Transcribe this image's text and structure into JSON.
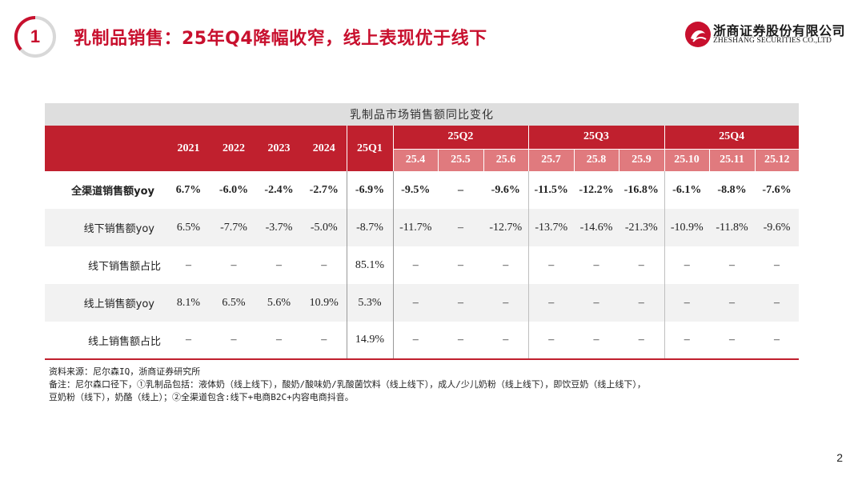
{
  "header": {
    "section_number": "1",
    "title": "乳制品销售：25年Q4降幅收窄，线上表现优于线下",
    "logo_cn": "浙商证券股份有限公司",
    "logo_en": "ZHESHANG SECURITIES CO.,LTD",
    "brand_color": "#c8102e"
  },
  "table": {
    "caption": "乳制品市场销售额同比变化",
    "years": [
      "2021",
      "2022",
      "2023",
      "2024"
    ],
    "q1_label": "25Q1",
    "quarters": [
      {
        "label": "25Q2",
        "months": [
          "25.4",
          "25.5",
          "25.6"
        ]
      },
      {
        "label": "25Q3",
        "months": [
          "25.7",
          "25.8",
          "25.9"
        ]
      },
      {
        "label": "25Q4",
        "months": [
          "25.10",
          "25.11",
          "25.12"
        ]
      }
    ],
    "rows": [
      {
        "label": "全渠道销售额yoy",
        "values": [
          "6.7%",
          "-6.0%",
          "-2.4%",
          "-2.7%",
          "-6.9%",
          "-9.5%",
          "–",
          "-9.6%",
          "-11.5%",
          "-12.2%",
          "-16.8%",
          "-6.1%",
          "-8.8%",
          "-7.6%"
        ]
      },
      {
        "label": "线下销售额yoy",
        "values": [
          "6.5%",
          "-7.7%",
          "-3.7%",
          "-5.0%",
          "-8.7%",
          "-11.7%",
          "–",
          "-12.7%",
          "-13.7%",
          "-14.6%",
          "-21.3%",
          "-10.9%",
          "-11.8%",
          "-9.6%"
        ]
      },
      {
        "label": "线下销售额占比",
        "values": [
          "–",
          "–",
          "–",
          "–",
          "85.1%",
          "–",
          "–",
          "–",
          "–",
          "–",
          "–",
          "–",
          "–",
          "–"
        ]
      },
      {
        "label": "线上销售额yoy",
        "values": [
          "8.1%",
          "6.5%",
          "5.6%",
          "10.9%",
          "5.3%",
          "–",
          "–",
          "–",
          "–",
          "–",
          "–",
          "–",
          "–",
          "–"
        ]
      },
      {
        "label": "线上销售额占比",
        "values": [
          "–",
          "–",
          "–",
          "–",
          "14.9%",
          "–",
          "–",
          "–",
          "–",
          "–",
          "–",
          "–",
          "–",
          "–"
        ]
      }
    ]
  },
  "notes": [
    "资料来源：尼尔森IQ，浙商证券研究所",
    "备注：尼尔森口径下，①乳制品包括：液体奶（线上线下），酸奶/酸味奶/乳酸菌饮料（线上线下），成人/少儿奶粉（线上线下），即饮豆奶（线上线下），",
    "豆奶粉（线下），奶酪（线上）；②全渠道包含:线下+电商B2C+内容电商抖音。"
  ],
  "page_number": "2"
}
